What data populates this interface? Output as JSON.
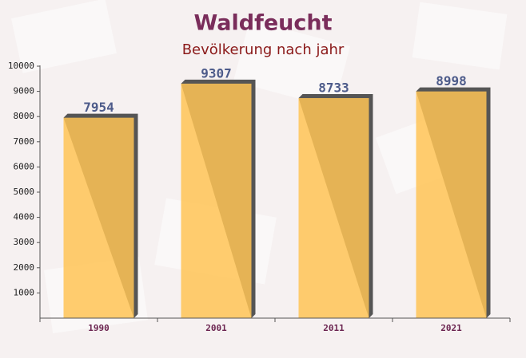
{
  "chart_data": {
    "type": "bar",
    "title": "Waldfeucht",
    "subtitle": "Bevölkerung nach jahr",
    "categories": [
      "1990",
      "2001",
      "2011",
      "2021"
    ],
    "values": [
      7954,
      9307,
      8733,
      8998
    ],
    "color": "#ffc456",
    "ylim": [
      0,
      10000
    ],
    "yticks": [
      1000,
      2000,
      3000,
      4000,
      5000,
      6000,
      7000,
      8000,
      9000,
      10000
    ]
  }
}
